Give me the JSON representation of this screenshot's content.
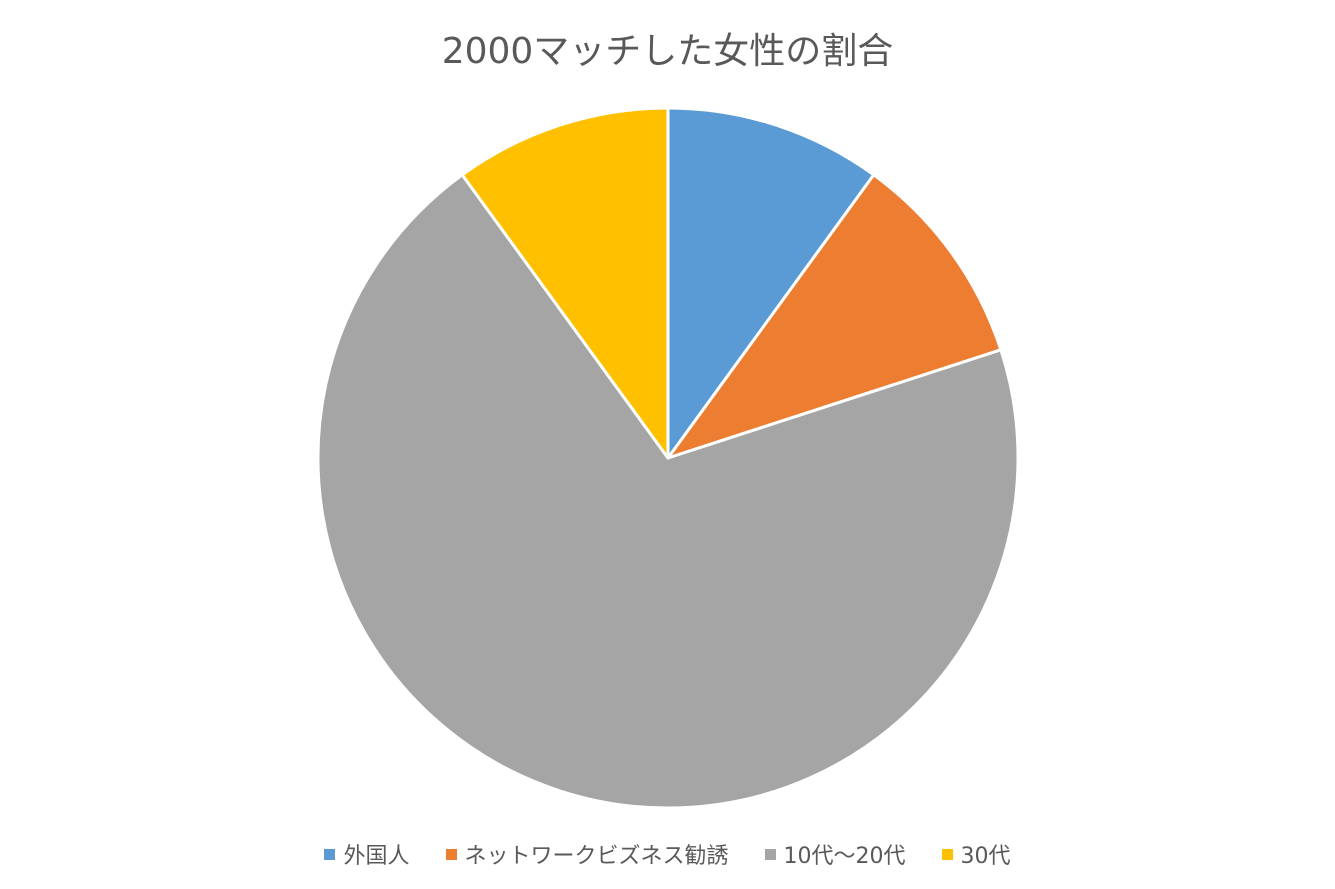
{
  "chart_data": {
    "type": "pie",
    "title": "2000マッチした女性の割合",
    "categories": [
      "外国人",
      "ネットワークビズネス勧誘",
      "10代〜20代",
      "30代"
    ],
    "values": [
      10,
      10,
      70,
      10
    ],
    "colors": [
      "#5B9BD5",
      "#ED7D31",
      "#A5A5A5",
      "#FFC000"
    ],
    "start_angle_deg": 0,
    "direction": "clockwise",
    "legend_position": "bottom"
  }
}
